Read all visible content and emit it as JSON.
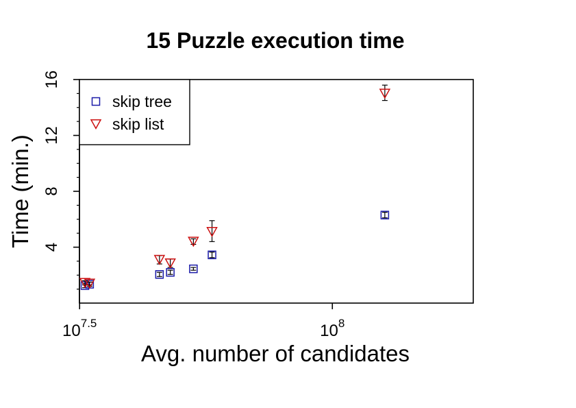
{
  "chart_data": {
    "type": "scatter",
    "title": "15 Puzzle execution time",
    "xlabel": "Avg. number of candidates",
    "ylabel": "Time (min.)",
    "x_scale": "log10",
    "xlim": [
      31600000,
      190000000
    ],
    "ylim": [
      0,
      16
    ],
    "x_ticks": [
      {
        "value": 31622777,
        "base": "10",
        "exp": "7.5"
      },
      {
        "value": 100000000,
        "base": "10",
        "exp": "8"
      }
    ],
    "y_ticks": [
      4,
      8,
      12,
      16
    ],
    "y_minor_ticks": [
      1,
      2,
      3,
      5,
      6,
      7,
      9,
      10,
      11,
      13,
      14,
      15
    ],
    "legend": {
      "position": "top-left"
    },
    "series": [
      {
        "name": "skip tree",
        "marker": "square",
        "color": "#1a1aa8",
        "points": [
          {
            "x": 32400000,
            "y": 1.25,
            "lo": 1.1,
            "hi": 1.4
          },
          {
            "x": 33100000,
            "y": 1.35,
            "lo": 1.2,
            "hi": 1.5
          },
          {
            "x": 45500000,
            "y": 2.05,
            "lo": 1.9,
            "hi": 2.2
          },
          {
            "x": 47800000,
            "y": 2.2,
            "lo": 2.05,
            "hi": 2.35
          },
          {
            "x": 53100000,
            "y": 2.45,
            "lo": 2.35,
            "hi": 2.55
          },
          {
            "x": 57800000,
            "y": 3.45,
            "lo": 3.25,
            "hi": 3.65
          },
          {
            "x": 127000000,
            "y": 6.3,
            "lo": 6.1,
            "hi": 6.5
          }
        ]
      },
      {
        "name": "skip list",
        "marker": "triangle-down",
        "color": "#cc1111",
        "points": [
          {
            "x": 32400000,
            "y": 1.45,
            "lo": 1.3,
            "hi": 1.6
          },
          {
            "x": 33100000,
            "y": 1.4,
            "lo": 1.3,
            "hi": 1.5
          },
          {
            "x": 45500000,
            "y": 3.1,
            "lo": 2.8,
            "hi": 3.4
          },
          {
            "x": 47800000,
            "y": 2.85,
            "lo": 2.55,
            "hi": 3.15
          },
          {
            "x": 53100000,
            "y": 4.4,
            "lo": 4.2,
            "hi": 4.6
          },
          {
            "x": 57800000,
            "y": 5.1,
            "lo": 4.4,
            "hi": 5.9
          },
          {
            "x": 127000000,
            "y": 15.0,
            "lo": 14.5,
            "hi": 15.6
          }
        ]
      }
    ]
  }
}
